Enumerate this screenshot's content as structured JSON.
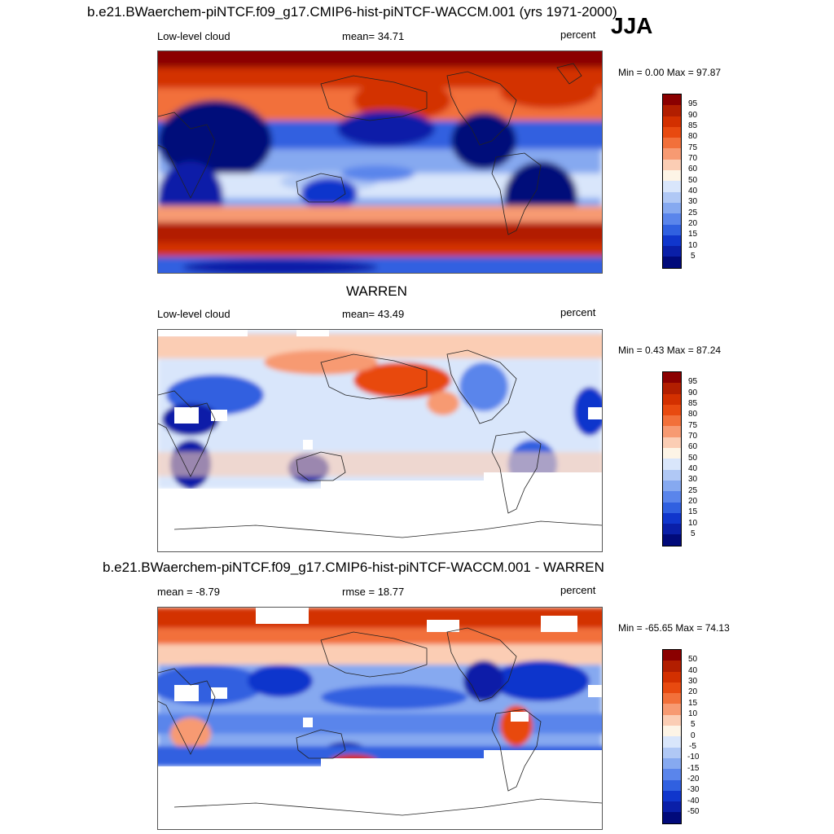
{
  "figure": {
    "title": "b.e21.BWaerchem-piNTCF.f09_g17.CMIP6-hist-piNTCF-WACCM.001 (yrs 1971-2000)",
    "season": "JJA"
  },
  "panels": [
    {
      "left_label": "Low-level cloud",
      "center_label": "mean=  34.71",
      "right_label": "percent",
      "minmax": "Min =   0.00 Max =  97.87",
      "colorbar_ticks": [
        "95",
        "90",
        "85",
        "80",
        "75",
        "70",
        "60",
        "50",
        "40",
        "30",
        "25",
        "20",
        "15",
        "10",
        "5"
      ]
    },
    {
      "title": "WARREN",
      "left_label": "Low-level cloud",
      "center_label": "mean=  43.49",
      "right_label": "percent",
      "minmax": "Min =   0.43 Max =  87.24",
      "colorbar_ticks": [
        "95",
        "90",
        "85",
        "80",
        "75",
        "70",
        "60",
        "50",
        "40",
        "30",
        "25",
        "20",
        "15",
        "10",
        "5"
      ]
    },
    {
      "title": "b.e21.BWaerchem-piNTCF.f09_g17.CMIP6-hist-piNTCF-WACCM.001 - WARREN",
      "left_label": "mean =  -8.79",
      "center_label": "rmse =  18.77",
      "right_label": "percent",
      "minmax": "Min = -65.65 Max =  74.13",
      "colorbar_ticks": [
        "50",
        "40",
        "30",
        "20",
        "15",
        "10",
        "5",
        "0",
        "-5",
        "-10",
        "-15",
        "-20",
        "-30",
        "-40",
        "-50"
      ]
    }
  ],
  "colorbar_colors": [
    "#8b0000",
    "#b21e00",
    "#d33000",
    "#e84a10",
    "#f2703a",
    "#f79a72",
    "#fbcdb4",
    "#fdf4e6",
    "#d9e6fb",
    "#b0c8f5",
    "#86a9f0",
    "#5a85eb",
    "#3060e0",
    "#1036cc",
    "#0a1fa8",
    "#010a7a"
  ]
}
